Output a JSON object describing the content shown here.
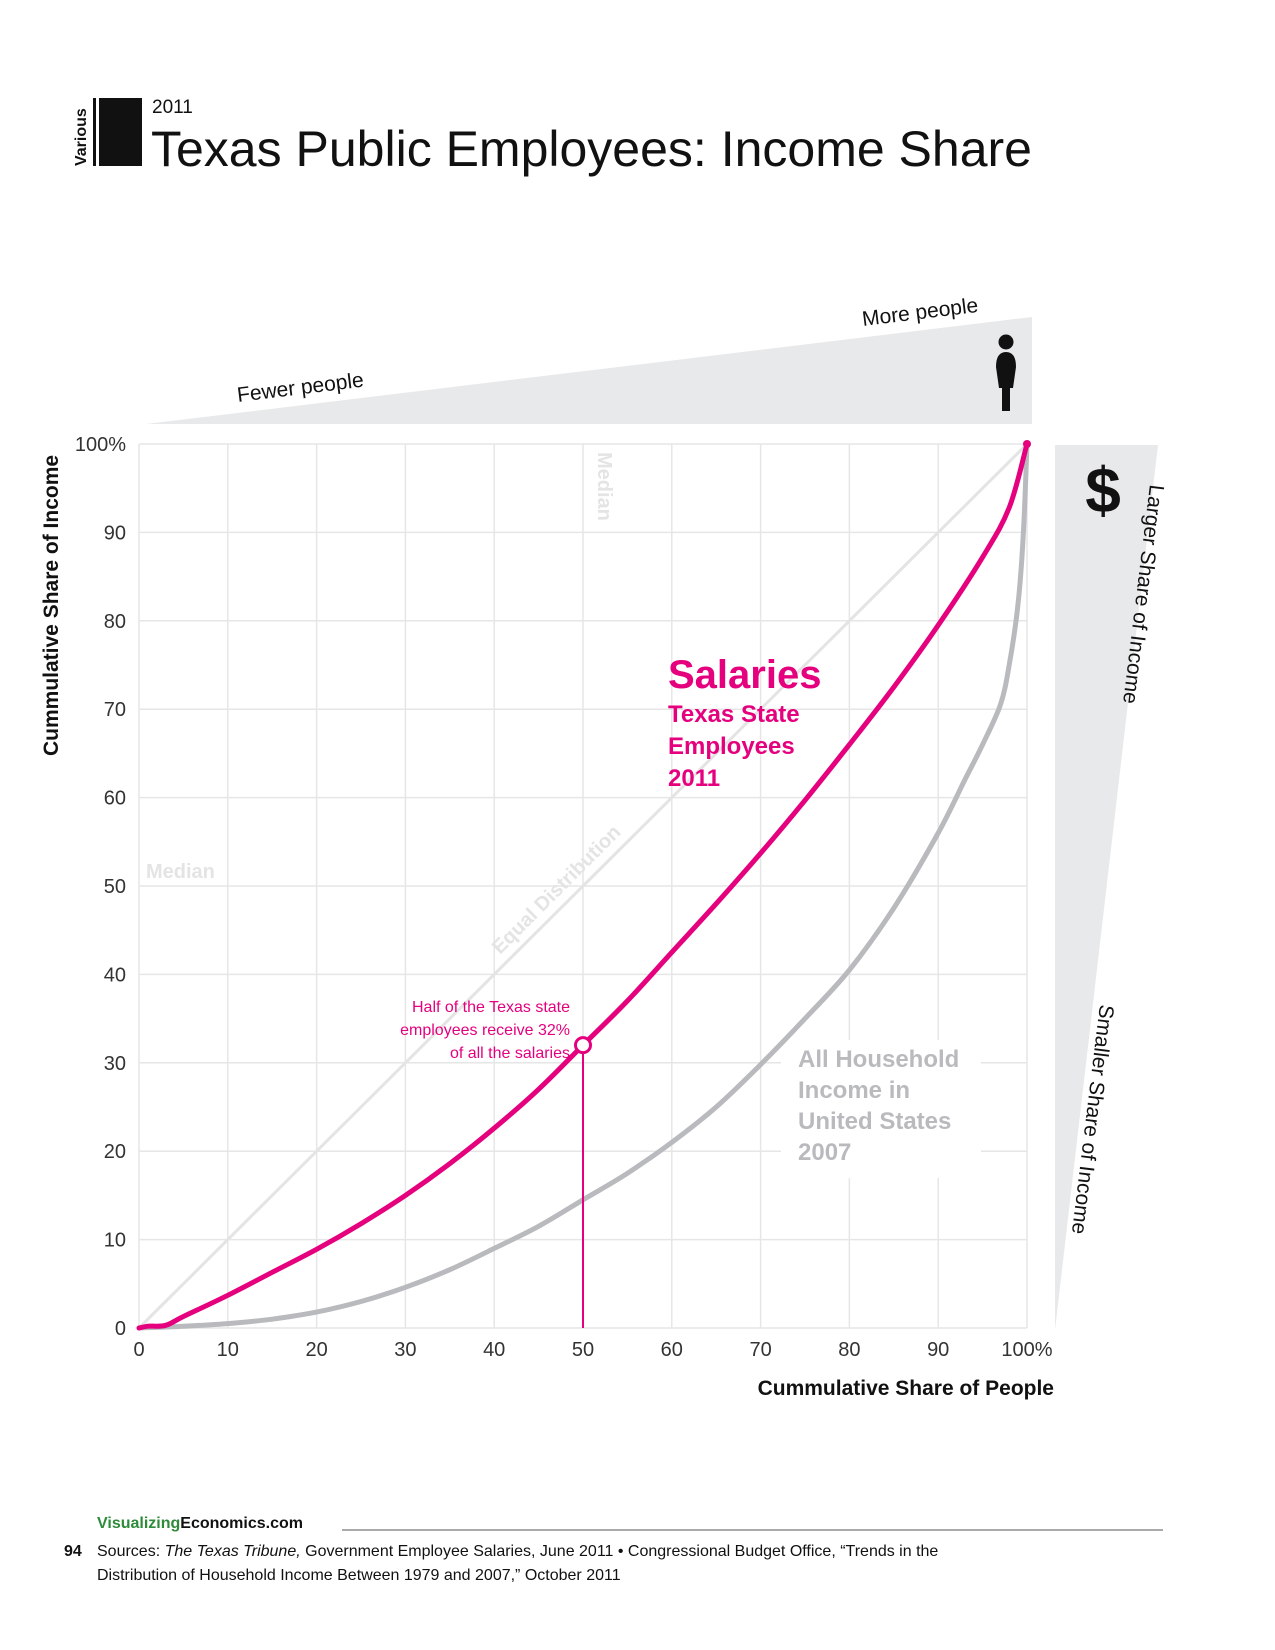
{
  "header": {
    "category": "Various",
    "year": "2011",
    "title": "Texas Public Employees: Income Share"
  },
  "top_scale": {
    "fewer_label": "Fewer people",
    "more_label": "More people",
    "icon": "person-icon"
  },
  "right_scale": {
    "larger_label": "Larger Share of Income",
    "smaller_label": "Smaller Share of  Income",
    "icon": "dollar-sign-icon"
  },
  "labels": {
    "median_vertical": "Median",
    "median_horizontal": "Median",
    "equal_distribution": "Equal Distribution"
  },
  "annotation": {
    "lines": [
      "Half of the Texas state",
      "employees receive 32%",
      "of all the salaries"
    ],
    "x": 50,
    "y": 32
  },
  "series_labels": {
    "salaries_title": "Salaries",
    "salaries_lines": [
      "Texas State",
      "Employees",
      "2011"
    ],
    "household_lines": [
      "All Household",
      "Income in",
      "United States",
      "2007"
    ]
  },
  "chart_data": {
    "type": "line",
    "title": "Texas Public Employees: Income Share",
    "xlabel": "Cummulative Share of People",
    "ylabel": "Cummulative Share of Income",
    "xlim": [
      0,
      100
    ],
    "ylim": [
      0,
      100
    ],
    "x_ticks": [
      "0",
      "10",
      "20",
      "30",
      "40",
      "50",
      "60",
      "70",
      "80",
      "90",
      "100%"
    ],
    "y_ticks": [
      "0",
      "10",
      "20",
      "30",
      "40",
      "50",
      "60",
      "70",
      "80",
      "90",
      "100%"
    ],
    "grid": true,
    "colors": {
      "salaries": "#e5007e",
      "household": "#b8babe",
      "equal": "#e4e4e4",
      "grid": "#e6e6e6"
    },
    "series": [
      {
        "id": "salaries",
        "name": "Salaries Texas State Employees 2011",
        "x": [
          0,
          1,
          3,
          5,
          10,
          15,
          20,
          25,
          30,
          35,
          40,
          45,
          50,
          55,
          60,
          65,
          70,
          75,
          80,
          85,
          90,
          95,
          98,
          100
        ],
        "y": [
          0,
          0.2,
          0.3,
          1.3,
          3.7,
          6.3,
          8.9,
          11.8,
          15,
          18.6,
          22.6,
          27,
          32,
          37,
          42.5,
          48,
          53.7,
          59.7,
          66,
          72.5,
          79.5,
          87.2,
          92.8,
          100
        ]
      },
      {
        "id": "household",
        "name": "All Household Income in United States 2007",
        "x": [
          0,
          5,
          10,
          15,
          20,
          25,
          30,
          35,
          40,
          45,
          50,
          55,
          60,
          65,
          70,
          75,
          80,
          85,
          90,
          93,
          95,
          97,
          98,
          99,
          99.6,
          100
        ],
        "y": [
          0,
          0.2,
          0.5,
          1,
          1.8,
          3,
          4.6,
          6.6,
          9,
          11.5,
          14.5,
          17.5,
          21,
          25,
          29.8,
          35,
          40.5,
          47.5,
          56,
          62,
          66,
          70.5,
          75,
          82,
          90,
          100
        ]
      },
      {
        "id": "equal",
        "name": "Equal Distribution",
        "x": [
          0,
          100
        ],
        "y": [
          0,
          100
        ]
      }
    ]
  },
  "footer": {
    "site_part1": "Visualizing",
    "site_part2": "Economics.com",
    "page_number": "94",
    "sources_prefix": "Sources: ",
    "source1_italic": "The Texas Tribune,",
    "source1_rest": " Government Employee Salaries, June 2011  •  Congressional Budget Office, “Trends in the",
    "source2": "Distribution of Household Income Between 1979 and 2007,” October 2011"
  }
}
